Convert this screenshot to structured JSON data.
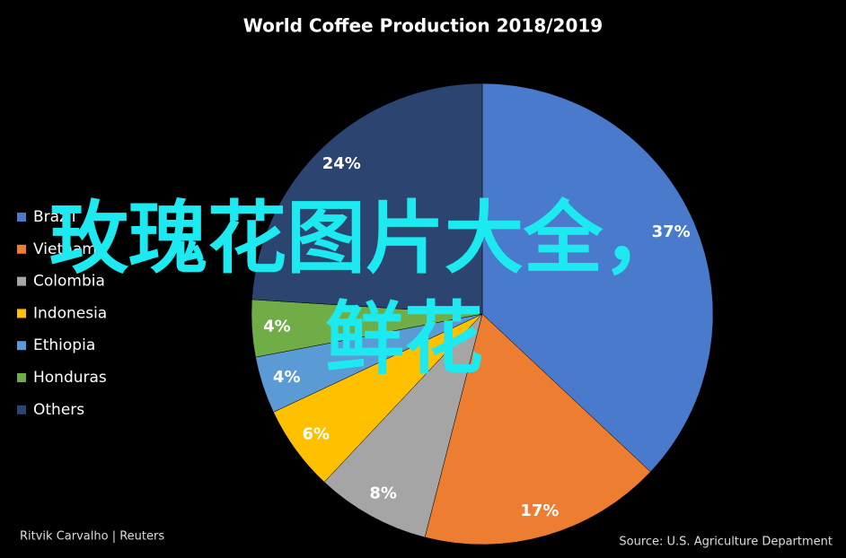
{
  "chart_data": {
    "type": "pie",
    "title": "World Coffee Production 2018/2019",
    "categories": [
      "Brazil",
      "Vietnam",
      "Colombia",
      "Indonesia",
      "Ethiopia",
      "Honduras",
      "Others"
    ],
    "values": [
      37,
      17,
      8,
      6,
      4,
      4,
      24
    ],
    "value_labels": [
      "37%",
      "17%",
      "8%",
      "6%",
      "4%",
      "4%",
      "24%"
    ],
    "colors": [
      "#4a7acb",
      "#ed7d31",
      "#a5a5a5",
      "#ffc000",
      "#5b9bd5",
      "#70ad47",
      "#2b4570"
    ],
    "legend": "left",
    "credit": "Ritvik Carvalho | Reuters",
    "source": "Source: U.S. Agriculture Department",
    "overlay_text": [
      "玫瑰花图片大全，",
      "鲜花"
    ]
  }
}
